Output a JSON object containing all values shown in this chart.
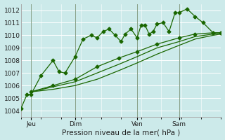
{
  "title": "Pression niveau de la mer( hPa )",
  "bg_color": "#cceaea",
  "grid_color": "#b8dede",
  "line_color": "#1a6600",
  "ylim": [
    1003.5,
    1012.5
  ],
  "yticks": [
    1004,
    1005,
    1006,
    1007,
    1008,
    1009,
    1010,
    1011,
    1012
  ],
  "xtick_labels": [
    "Jeu",
    "Dim",
    "Ven",
    "Sam"
  ],
  "xtick_positions": [
    0.05,
    0.27,
    0.58,
    0.79
  ],
  "vline_x": [
    0.05,
    0.27,
    0.58,
    0.79
  ],
  "series1_x": [
    0.0,
    0.03,
    0.05,
    0.1,
    0.16,
    0.19,
    0.22,
    0.27,
    0.31,
    0.35,
    0.38,
    0.41,
    0.44,
    0.47,
    0.5,
    0.52,
    0.55,
    0.58,
    0.6,
    0.62,
    0.64,
    0.66,
    0.68,
    0.71,
    0.74,
    0.77,
    0.79,
    0.83,
    0.87,
    0.91,
    0.96,
    1.0
  ],
  "series1_y": [
    1004.2,
    1005.3,
    1005.3,
    1006.8,
    1008.0,
    1007.1,
    1007.0,
    1008.3,
    1009.7,
    1010.0,
    1009.8,
    1010.3,
    1010.5,
    1010.0,
    1009.5,
    1010.1,
    1010.5,
    1009.8,
    1010.8,
    1010.8,
    1010.1,
    1010.3,
    1010.9,
    1011.0,
    1010.3,
    1011.8,
    1011.8,
    1012.1,
    1011.5,
    1011.0,
    1010.2,
    1010.2
  ],
  "series2_x": [
    0.05,
    0.16,
    0.27,
    0.38,
    0.49,
    0.58,
    0.68,
    0.79,
    0.87,
    0.96,
    1.0
  ],
  "series2_y": [
    1005.5,
    1006.0,
    1006.5,
    1007.5,
    1008.2,
    1008.7,
    1009.3,
    1009.8,
    1010.1,
    1010.2,
    1010.2
  ],
  "series3_x": [
    0.05,
    0.16,
    0.27,
    0.38,
    0.49,
    0.58,
    0.68,
    0.79,
    0.87,
    0.96,
    1.0
  ],
  "series3_y": [
    1005.5,
    1005.9,
    1006.3,
    1007.0,
    1007.7,
    1008.3,
    1009.0,
    1009.5,
    1009.9,
    1010.1,
    1010.2
  ],
  "series4_x": [
    0.05,
    0.16,
    0.27,
    0.38,
    0.49,
    0.58,
    0.68,
    0.79,
    0.87,
    0.96,
    1.0
  ],
  "series4_y": [
    1005.5,
    1005.7,
    1006.0,
    1006.5,
    1007.2,
    1007.8,
    1008.5,
    1009.2,
    1009.7,
    1010.0,
    1010.1
  ],
  "marker_size": 2.5,
  "lw": 0.9,
  "ylabel_fontsize": 6.5,
  "xlabel_fontsize": 7.5,
  "tick_fontsize": 6.5
}
